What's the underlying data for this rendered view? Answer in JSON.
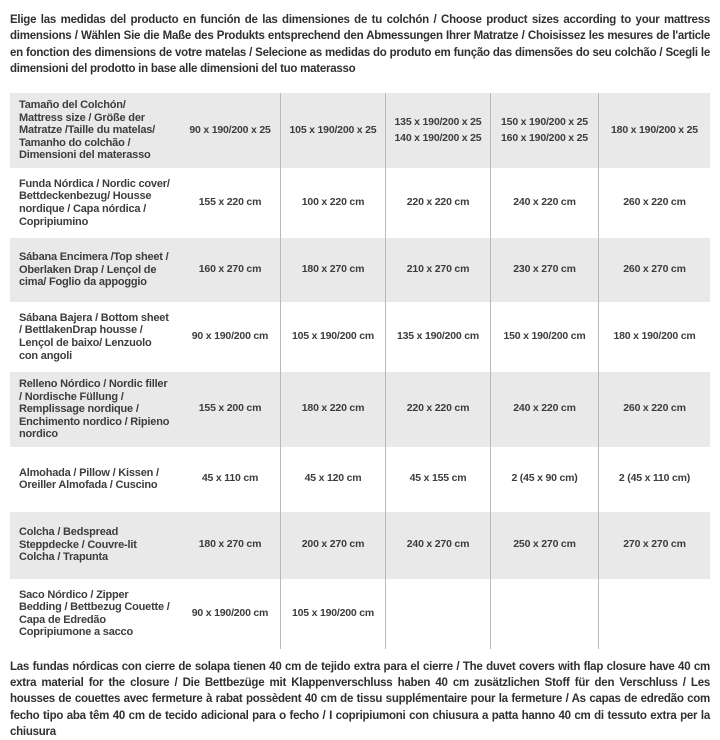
{
  "colors": {
    "row_shade": "#e9e9e9",
    "column_separator": "#b9b9b9",
    "text": "#383838"
  },
  "header": {
    "text": "Elige las medidas del producto en función de las dimensiones de tu colchón / Choose product sizes according to your mattress dimensions / Wählen Sie die Maße des Produkts entsprechend den Abmessungen Ihrer Matratze / Choisissez les mesures de l'article en fonction des dimensions de votre matelas / Selecione as medidas do produto em função das dimensões do seu colchão / Scegli le dimensioni del prodotto in base alle dimensioni del tuo materasso"
  },
  "table": {
    "rows": [
      {
        "label": "Tamaño del Colchón/ Mattress size / Größe der Matratze /Taille du matelas/ Tamanho do colchão / Dimensioni del materasso",
        "cells": [
          "90 x 190/200 x 25",
          "105 x 190/200 x 25",
          "135 x 190/200 x 25\n140 x 190/200 x 25",
          "150 x 190/200 x 25\n160 x 190/200 x 25",
          "180 x 190/200 x 25"
        ]
      },
      {
        "label": "Funda Nórdica /  Nordic cover/ Bettdeckenbezug/ Housse nordique  / Capa nórdica / Copripiumino",
        "cells": [
          "155 x 220 cm",
          "100 x 220 cm",
          "220 x 220 cm",
          "240 x 220 cm",
          "260 x 220 cm"
        ]
      },
      {
        "label": "Sábana Encimera /Top sheet / Oberlaken Drap / Lençol de cima/ Foglio da appoggio",
        "cells": [
          "160 x 270 cm",
          "180 x 270 cm",
          "210 x 270 cm",
          "230 x 270 cm",
          "260 x 270 cm"
        ]
      },
      {
        "label": "Sábana Bajera / Bottom sheet / BettlakenDrap housse / Lençol de baixo/ Lenzuolo con angoli",
        "cells": [
          "90 x 190/200 cm",
          "105 x 190/200 cm",
          "135 x 190/200 cm",
          "150 x 190/200 cm",
          "180 x 190/200 cm"
        ]
      },
      {
        "label": "Relleno Nórdico / Nordic filler / Nordische Füllung / Remplissage nordique / Enchimento nordico / Ripieno nordico",
        "cells": [
          "155 x 200 cm",
          "180 x 220 cm",
          "220 x 220 cm",
          "240 x 220 cm",
          "260 x 220 cm"
        ]
      },
      {
        "label": "Almohada  / Pillow / Kissen / Oreiller Almofada / Cuscino",
        "cells": [
          "45 x 110 cm",
          "45 x 120 cm",
          "45 x 155 cm",
          "2 (45 x 90 cm)",
          "2 (45 x 110 cm)"
        ]
      },
      {
        "label": "Colcha / Bedspread Steppdecke / Couvre-lit Colcha / Trapunta",
        "cells": [
          "180 x 270 cm",
          "200 x 270 cm",
          "240 x 270 cm",
          "250 x 270 cm",
          "270 x 270 cm"
        ]
      },
      {
        "label": "Saco Nórdico / Zipper Bedding / Bettbezug Couette  / Capa de Edredão Copripiumone a sacco",
        "cells": [
          "90 x 190/200 cm",
          "105 x 190/200 cm",
          "",
          "",
          ""
        ]
      }
    ]
  },
  "footer": {
    "text": "Las fundas nórdicas con cierre de solapa tienen 40 cm de tejido extra para el cierre  / The duvet covers with flap closure have 40 cm extra material for the closure / Die Bettbezüge mit Klappenverschluss haben 40 cm zusätzlichen Stoff für den Verschluss / Les housses de couettes avec fermeture à rabat possèdent 40 cm de tissu supplémentaire pour la fermeture / As capas de edredão com fecho tipo aba têm 40 cm de tecido adicional para o fecho / I copripiumoni con chiusura a patta hanno 40 cm di tessuto extra per la chiusura"
  }
}
